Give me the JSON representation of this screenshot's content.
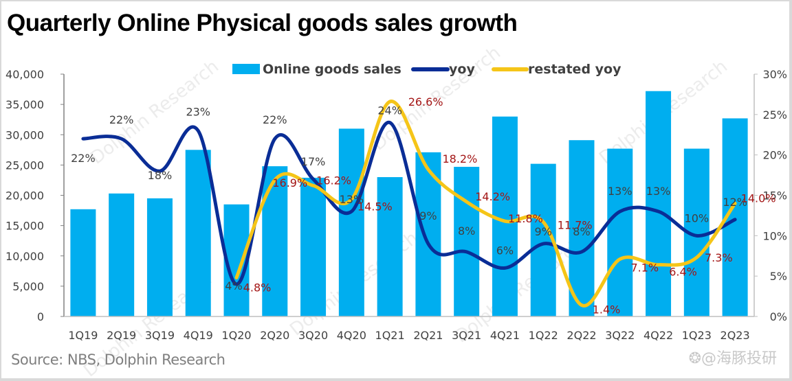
{
  "header": {
    "title": "Quarterly Online Physical goods sales growth"
  },
  "footer": {
    "source": "Source: NBS, Dolphin Research",
    "brand_watermark": "❂@海豚投研"
  },
  "watermark": {
    "text": "Dolphin Research"
  },
  "colors": {
    "bar": "#00aeef",
    "yoy": "#0a2d96",
    "restated_yoy": "#f5c518",
    "restated_label": "#a31515",
    "label": "#404040",
    "axis": "#bfbfbf"
  },
  "chart_data": {
    "type": "bar",
    "title": "Quarterly Online Physical goods sales growth",
    "xlabel": "",
    "ylabel": "",
    "categories": [
      "1Q19",
      "2Q19",
      "3Q19",
      "4Q19",
      "1Q20",
      "2Q20",
      "3Q20",
      "4Q20",
      "1Q21",
      "2Q21",
      "3Q21",
      "4Q21",
      "1Q22",
      "2Q22",
      "3Q22",
      "4Q22",
      "1Q23",
      "2Q23"
    ],
    "ylim": [
      0,
      40000
    ],
    "y_ticks": [
      "0",
      "5,000",
      "10,000",
      "15,000",
      "20,000",
      "25,000",
      "30,000",
      "35,000",
      "40,000"
    ],
    "y2lim": [
      0,
      30
    ],
    "y2_ticks": [
      "0%",
      "5%",
      "10%",
      "15%",
      "20%",
      "25%",
      "30%"
    ],
    "grid": false,
    "legend_position": "top-center",
    "series": [
      {
        "name": "Online goods sales",
        "type": "bar",
        "axis": "left",
        "values": [
          17700,
          20300,
          19500,
          27500,
          18500,
          24800,
          22900,
          31000,
          23000,
          27100,
          24700,
          33000,
          25200,
          29100,
          27700,
          37200,
          27700,
          32700
        ]
      },
      {
        "name": "yoy",
        "type": "line",
        "axis": "right",
        "values": [
          22,
          22,
          18,
          23,
          4,
          22,
          17,
          13,
          24,
          9,
          8,
          6,
          9,
          8,
          13,
          13,
          10,
          12
        ],
        "labels": [
          "22%",
          "22%",
          "18%",
          "23%",
          "4%",
          "22%",
          "17%",
          "13%",
          "24%",
          "9%",
          "8%",
          "6%",
          "9%",
          "8%",
          "13%",
          "13%",
          "10%",
          "12%"
        ]
      },
      {
        "name": "restated yoy",
        "type": "line",
        "axis": "right",
        "start_index": 4,
        "values": [
          4.8,
          16.9,
          16.2,
          14.5,
          26.6,
          18.2,
          14.2,
          11.8,
          11.7,
          1.4,
          7.1,
          6.4,
          7.3,
          14.0
        ],
        "labels": [
          "4.8%",
          "16.9%",
          "16.2%",
          "14.5%",
          "26.6%",
          "18.2%",
          "14.2%",
          "11.8%",
          "11.7%",
          "1.4%",
          "7.1%",
          "6.4%",
          "7.3%",
          "14.0%"
        ]
      }
    ]
  }
}
